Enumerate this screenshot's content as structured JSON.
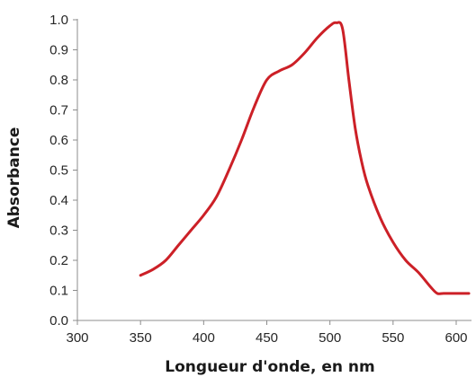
{
  "chart_data": {
    "type": "line",
    "xlabel": "Longueur d'onde, en nm",
    "ylabel": "Absorbance",
    "xlim": [
      300,
      600
    ],
    "ylim": [
      0.0,
      1.0
    ],
    "x_ticks": [
      "300",
      "350",
      "400",
      "450",
      "500",
      "550",
      "600"
    ],
    "y_ticks": [
      "0.0",
      "0.1",
      "0.2",
      "0.3",
      "0.4",
      "0.5",
      "0.6",
      "0.7",
      "0.8",
      "0.9",
      "1.0"
    ],
    "grid": false,
    "legend": "none",
    "series": [
      {
        "color": "#cc2027",
        "x": [
          350,
          360,
          370,
          380,
          390,
          400,
          410,
          420,
          430,
          440,
          450,
          460,
          470,
          480,
          490,
          500,
          505,
          510,
          515,
          520,
          525,
          530,
          540,
          550,
          560,
          570,
          580,
          585,
          590,
          600,
          610
        ],
        "y": [
          0.15,
          0.17,
          0.2,
          0.25,
          0.3,
          0.35,
          0.41,
          0.5,
          0.6,
          0.71,
          0.8,
          0.83,
          0.85,
          0.89,
          0.94,
          0.98,
          0.99,
          0.97,
          0.8,
          0.64,
          0.53,
          0.45,
          0.34,
          0.26,
          0.2,
          0.16,
          0.11,
          0.09,
          0.09,
          0.09,
          0.09
        ]
      }
    ]
  }
}
